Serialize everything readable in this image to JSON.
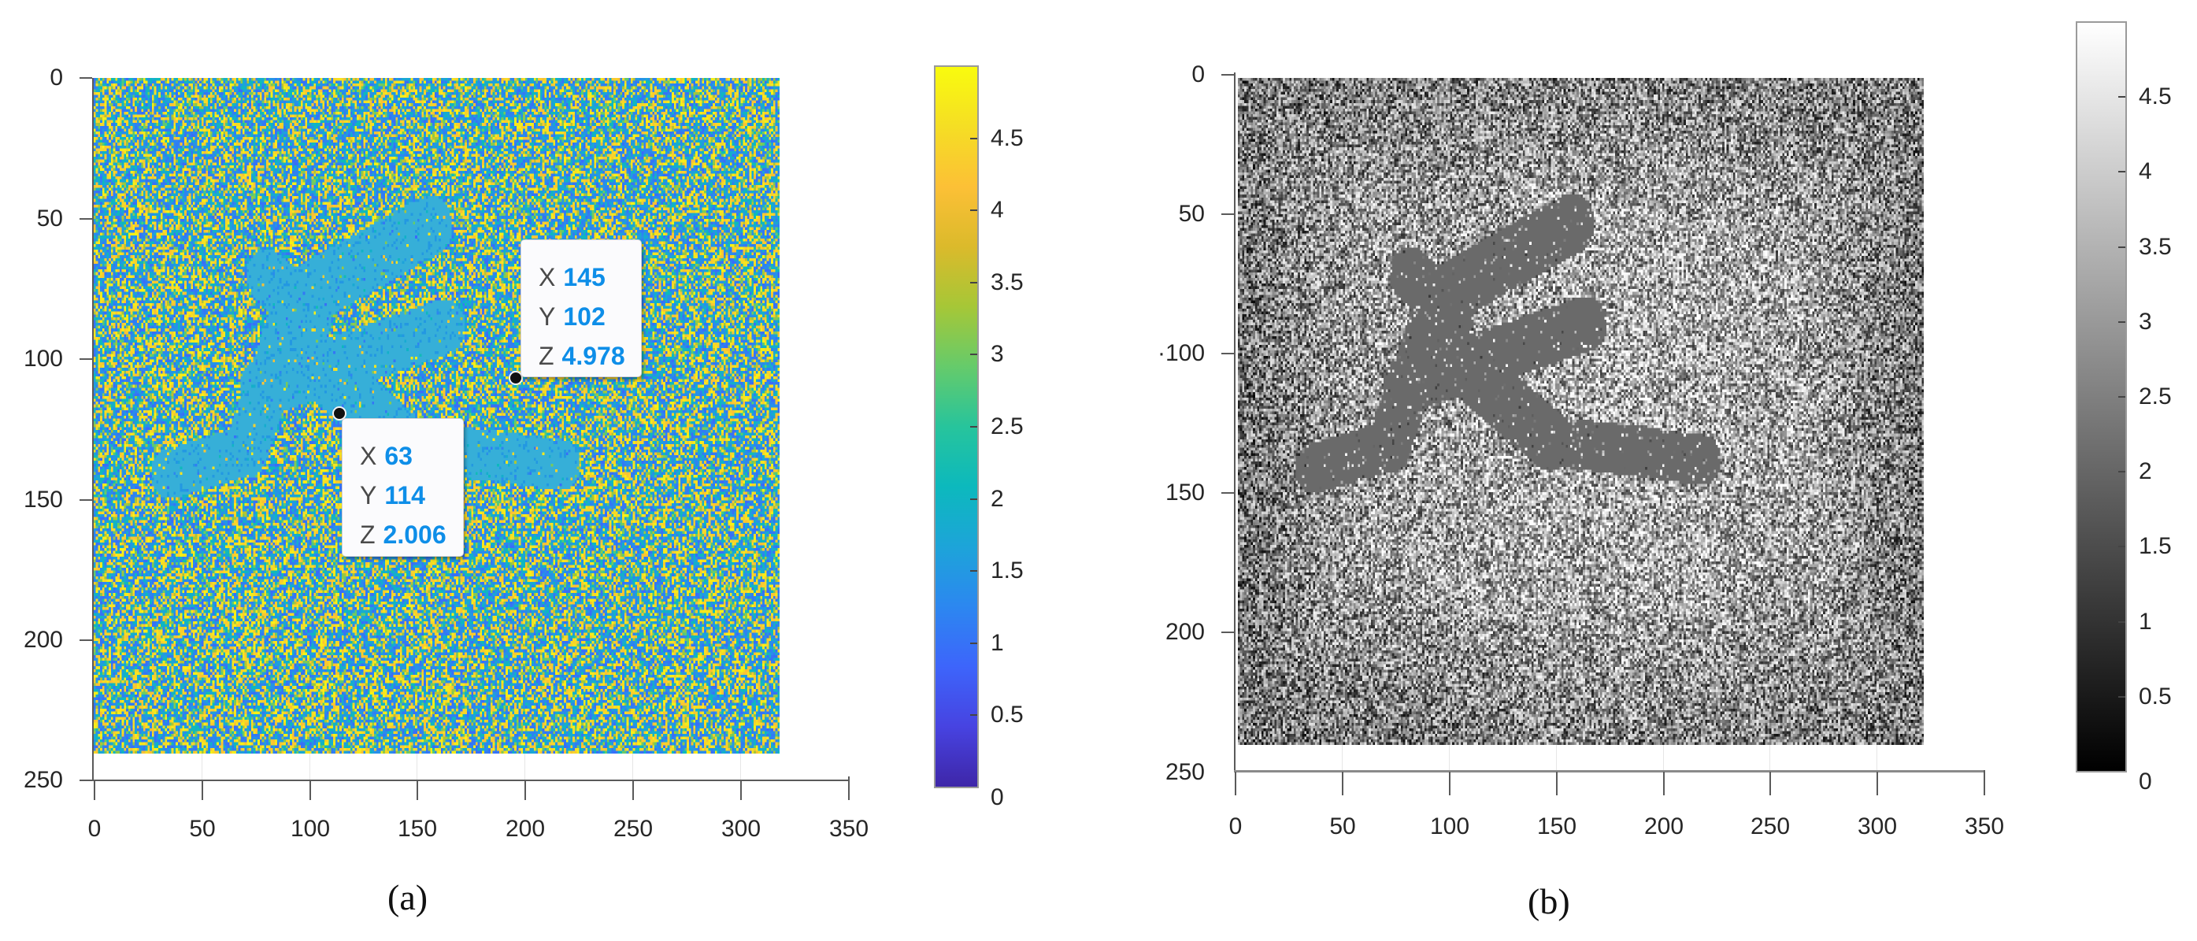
{
  "figure": {
    "panels": [
      {
        "id": "a",
        "caption": "(a)",
        "colormap": "parula",
        "yticks": [
          "0",
          "50",
          "100",
          "150",
          "200",
          "250"
        ],
        "xticks": [
          "0",
          "50",
          "100",
          "150",
          "200",
          "250",
          "300",
          "350"
        ],
        "colorbar_ticks": [
          "0",
          "0.5",
          "1",
          "1.5",
          "2",
          "2.5",
          "3",
          "3.5",
          "4",
          "4.5"
        ],
        "datatips": [
          {
            "x_label": "X",
            "x_value": "145",
            "y_label": "Y",
            "y_value": "102",
            "z_label": "Z",
            "z_value": "4.978"
          },
          {
            "x_label": "X",
            "x_value": "63",
            "y_label": "Y",
            "y_value": "114",
            "z_label": "Z",
            "z_value": "2.006"
          }
        ]
      },
      {
        "id": "b",
        "caption": "(b)",
        "colormap": "gray",
        "yticks": [
          "0",
          "50",
          "·100",
          "150",
          "200",
          "250"
        ],
        "xticks": [
          "0",
          "50",
          "100",
          "150",
          "200",
          "250",
          "300",
          "350"
        ],
        "colorbar_ticks": [
          "0",
          "0.5",
          "1",
          "1.5",
          "2",
          "2.5",
          "3",
          "3.5",
          "4",
          "4.5"
        ]
      }
    ],
    "colors": {
      "parula": [
        "#3e26a8",
        "#4743e1",
        "#3d65fb",
        "#2c87f0",
        "#1da4d9",
        "#0cb9bd",
        "#27c49c",
        "#65cb6b",
        "#a6c737",
        "#dbba2b",
        "#fcc036",
        "#f5de24",
        "#f9fb0e"
      ],
      "character_parula": "#36afd8",
      "character_gray": "#6a6a6a",
      "datatip_value": "#0e8ee8"
    }
  },
  "chart_data": [
    {
      "type": "heatmap",
      "title": "(a)",
      "xlabel": "",
      "ylabel": "",
      "xlim": [
        0,
        350
      ],
      "ylim": [
        250,
        0
      ],
      "image_extent": {
        "x": [
          0,
          318
        ],
        "y": [
          0,
          240
        ]
      },
      "colorbar": {
        "colormap": "parula",
        "range": [
          0,
          5
        ],
        "ticks": [
          0,
          0.5,
          1,
          1.5,
          2,
          2.5,
          3,
          3.5,
          4,
          4.5
        ]
      },
      "grid": false,
      "description": "Noisy speckle field with a flat region shaped like a Chinese character (~value 2) in the center",
      "annotations": [
        {
          "type": "datatip",
          "X": 145,
          "Y": 102,
          "Z": 4.978
        },
        {
          "type": "datatip",
          "X": 63,
          "Y": 114,
          "Z": 2.006
        }
      ]
    },
    {
      "type": "heatmap",
      "title": "(b)",
      "xlabel": "",
      "ylabel": "",
      "xlim": [
        0,
        350
      ],
      "ylim": [
        250,
        0
      ],
      "image_extent": {
        "x": [
          0,
          320
        ],
        "y": [
          0,
          240
        ]
      },
      "colorbar": {
        "colormap": "gray",
        "range": [
          0,
          5
        ],
        "ticks": [
          0,
          0.5,
          1,
          1.5,
          2,
          2.5,
          3,
          3.5,
          4,
          4.5
        ]
      },
      "grid": false,
      "description": "Grayscale speckle field with a uniform mid-gray character-shaped region (~value 2)"
    }
  ]
}
